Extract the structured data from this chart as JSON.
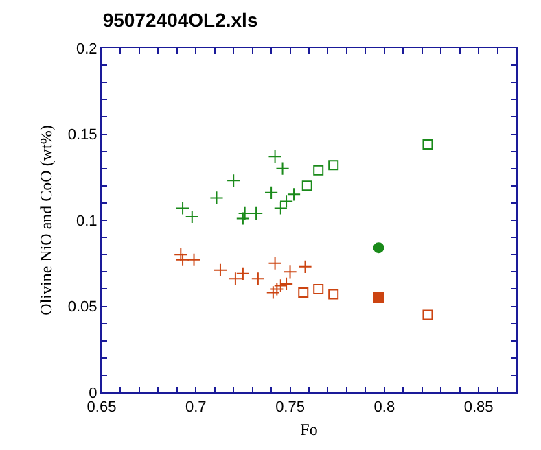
{
  "chart_data": {
    "type": "scatter",
    "title": "95072404OL2.xls",
    "xlabel": "Fo",
    "ylabel": "Olivine NiO and CoO (wt%)",
    "xlim": [
      0.65,
      0.87
    ],
    "xticks": [
      0.65,
      {
        "value": 0.66,
        "label": null
      },
      {
        "value": 0.67,
        "label": null
      },
      {
        "value": 0.68,
        "label": null
      },
      {
        "value": 0.69,
        "label": null
      },
      0.7,
      {
        "value": 0.71,
        "label": null
      },
      {
        "value": 0.72,
        "label": null
      },
      {
        "value": 0.73,
        "label": null
      },
      {
        "value": 0.74,
        "label": null
      },
      0.75,
      {
        "value": 0.76,
        "label": null
      },
      {
        "value": 0.77,
        "label": null
      },
      {
        "value": 0.78,
        "label": null
      },
      {
        "value": 0.79,
        "label": null
      },
      0.8,
      {
        "value": 0.81,
        "label": null
      },
      {
        "value": 0.82,
        "label": null
      },
      {
        "value": 0.83,
        "label": null
      },
      {
        "value": 0.84,
        "label": null
      },
      0.85,
      {
        "value": 0.86,
        "label": null
      }
    ],
    "ylim": [
      0,
      0.2
    ],
    "yticks": [
      0,
      {
        "value": 0.01,
        "label": null
      },
      {
        "value": 0.02,
        "label": null
      },
      {
        "value": 0.03,
        "label": null
      },
      {
        "value": 0.04,
        "label": null
      },
      0.05,
      {
        "value": 0.06,
        "label": null
      },
      {
        "value": 0.07,
        "label": null
      },
      {
        "value": 0.08,
        "label": null
      },
      {
        "value": 0.09,
        "label": null
      },
      0.1,
      {
        "value": 0.11,
        "label": null
      },
      {
        "value": 0.12,
        "label": null
      },
      {
        "value": 0.13,
        "label": null
      },
      {
        "value": 0.14,
        "label": null
      },
      0.15,
      {
        "value": 0.16,
        "label": null
      },
      {
        "value": 0.17,
        "label": null
      },
      {
        "value": 0.18,
        "label": null
      },
      {
        "value": 0.19,
        "label": null
      },
      0.2
    ],
    "grid": false,
    "series": [
      {
        "color": "#1a8a1a",
        "marker": "cross",
        "x": [
          0.693,
          0.698,
          0.711,
          0.72,
          0.725,
          0.726,
          0.732,
          0.742,
          0.746,
          0.74,
          0.745,
          0.748,
          0.752
        ],
        "values": [
          0.107,
          0.102,
          0.113,
          0.123,
          0.101,
          0.104,
          0.104,
          0.137,
          0.13,
          0.116,
          0.107,
          0.111,
          0.115
        ]
      },
      {
        "color": "#1a8a1a",
        "marker": "square",
        "x": [
          0.759,
          0.765,
          0.773,
          0.823
        ],
        "values": [
          0.12,
          0.129,
          0.132,
          0.144
        ]
      },
      {
        "color": "#1a8a1a",
        "marker": "circle",
        "x": [
          0.797
        ],
        "values": [
          0.084
        ]
      },
      {
        "color": "#cc4411",
        "marker": "cross",
        "x": [
          0.692,
          0.693,
          0.699,
          0.713,
          0.721,
          0.725,
          0.733,
          0.742,
          0.75,
          0.758,
          0.741,
          0.743,
          0.745,
          0.748
        ],
        "values": [
          0.08,
          0.077,
          0.077,
          0.071,
          0.066,
          0.069,
          0.066,
          0.075,
          0.07,
          0.073,
          0.058,
          0.06,
          0.062,
          0.063
        ]
      },
      {
        "color": "#cc4411",
        "marker": "square",
        "x": [
          0.757,
          0.765,
          0.773,
          0.823
        ],
        "values": [
          0.058,
          0.06,
          0.057,
          0.045
        ]
      },
      {
        "color": "#cc4411",
        "marker": "square",
        "x": [
          0.797
        ],
        "values": [
          0.055
        ]
      }
    ]
  }
}
